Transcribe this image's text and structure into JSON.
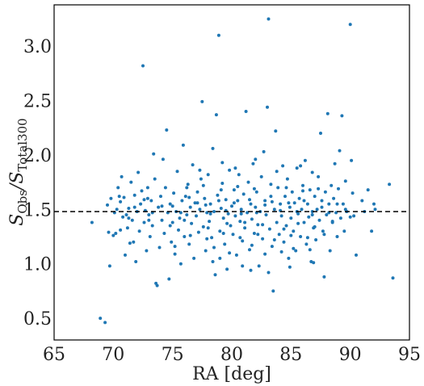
{
  "chart_data": {
    "type": "scatter",
    "xlabel": "RA [deg]",
    "ylabel_main": "S",
    "ylabel_sub1": "Obs",
    "ylabel_sep": "/S",
    "ylabel_sub2": "Total300",
    "xlim": [
      65,
      95
    ],
    "ylim": [
      0.3,
      3.38
    ],
    "xticks": [
      65,
      70,
      75,
      80,
      85,
      90,
      95
    ],
    "xtick_labels": [
      "65",
      "70",
      "75",
      "80",
      "85",
      "90",
      "95"
    ],
    "yticks": [
      0.5,
      1.0,
      1.5,
      2.0,
      2.5,
      3.0
    ],
    "ytick_labels": [
      "0.5",
      "1.0",
      "1.5",
      "2.0",
      "2.5",
      "3.0"
    ],
    "reference_line": {
      "y": 1.48,
      "style": "dashed",
      "color": "#000000"
    },
    "marker_color": "#1f77b4",
    "grid": false,
    "points": [
      [
        68.2,
        1.38
      ],
      [
        68.9,
        0.5
      ],
      [
        69.3,
        0.46
      ],
      [
        69.5,
        1.54
      ],
      [
        69.6,
        1.29
      ],
      [
        69.7,
        0.98
      ],
      [
        69.8,
        1.6
      ],
      [
        70.0,
        1.26
      ],
      [
        70.1,
        1.47
      ],
      [
        70.2,
        1.28
      ],
      [
        70.3,
        1.5
      ],
      [
        70.4,
        1.7
      ],
      [
        70.5,
        1.62
      ],
      [
        70.6,
        1.31
      ],
      [
        70.7,
        1.8
      ],
      [
        70.8,
        1.43
      ],
      [
        70.9,
        1.61
      ],
      [
        71.0,
        1.08
      ],
      [
        71.1,
        1.45
      ],
      [
        71.2,
        1.33
      ],
      [
        71.3,
        1.51
      ],
      [
        71.4,
        1.19
      ],
      [
        71.5,
        1.75
      ],
      [
        71.6,
        1.4
      ],
      [
        71.7,
        1.2
      ],
      [
        71.8,
        1.63
      ],
      [
        71.9,
        1.02
      ],
      [
        72.0,
        1.48
      ],
      [
        72.1,
        1.84
      ],
      [
        72.2,
        1.3
      ],
      [
        72.3,
        1.55
      ],
      [
        72.4,
        1.67
      ],
      [
        72.5,
        2.82
      ],
      [
        72.6,
        1.38
      ],
      [
        72.7,
        1.49
      ],
      [
        72.8,
        1.12
      ],
      [
        72.9,
        1.7
      ],
      [
        73.0,
        1.45
      ],
      [
        73.1,
        1.25
      ],
      [
        73.2,
        1.58
      ],
      [
        73.3,
        1.35
      ],
      [
        73.4,
        2.01
      ],
      [
        73.5,
        1.78
      ],
      [
        73.6,
        0.82
      ],
      [
        73.7,
        0.8
      ],
      [
        73.8,
        1.52
      ],
      [
        73.9,
        1.15
      ],
      [
        74.0,
        1.62
      ],
      [
        74.1,
        1.4
      ],
      [
        74.2,
        1.96
      ],
      [
        74.3,
        1.28
      ],
      [
        74.4,
        1.7
      ],
      [
        74.5,
        2.23
      ],
      [
        74.6,
        1.47
      ],
      [
        74.7,
        0.86
      ],
      [
        74.8,
        1.55
      ],
      [
        74.9,
        1.2
      ],
      [
        75.0,
        1.38
      ],
      [
        75.1,
        1.65
      ],
      [
        75.2,
        1.09
      ],
      [
        75.3,
        1.48
      ],
      [
        75.4,
        1.85
      ],
      [
        75.5,
        1.31
      ],
      [
        75.6,
        1.42
      ],
      [
        75.7,
        1.0
      ],
      [
        75.8,
        1.58
      ],
      [
        75.9,
        2.09
      ],
      [
        76.0,
        1.25
      ],
      [
        76.1,
        1.62
      ],
      [
        76.2,
        1.45
      ],
      [
        76.3,
        1.73
      ],
      [
        76.4,
        1.18
      ],
      [
        76.5,
        1.52
      ],
      [
        76.6,
        1.37
      ],
      [
        76.7,
        1.91
      ],
      [
        76.8,
        1.05
      ],
      [
        76.9,
        1.56
      ],
      [
        77.0,
        1.44
      ],
      [
        77.1,
        1.66
      ],
      [
        77.2,
        1.29
      ],
      [
        77.3,
        1.5
      ],
      [
        77.4,
        1.78
      ],
      [
        77.5,
        2.49
      ],
      [
        77.6,
        1.34
      ],
      [
        77.7,
        1.6
      ],
      [
        77.8,
        1.12
      ],
      [
        77.9,
        1.47
      ],
      [
        78.0,
        1.82
      ],
      [
        78.1,
        1.39
      ],
      [
        78.2,
        1.55
      ],
      [
        78.3,
        1.24
      ],
      [
        78.4,
        2.06
      ],
      [
        78.5,
        1.48
      ],
      [
        78.6,
        0.9
      ],
      [
        78.7,
        2.37
      ],
      [
        78.8,
        1.63
      ],
      [
        78.9,
        3.1
      ],
      [
        79.0,
        1.3
      ],
      [
        79.1,
        1.51
      ],
      [
        79.2,
        1.74
      ],
      [
        79.3,
        1.42
      ],
      [
        79.4,
        1.18
      ],
      [
        79.5,
        1.59
      ],
      [
        79.6,
        0.95
      ],
      [
        79.7,
        1.46
      ],
      [
        79.8,
        1.86
      ],
      [
        79.9,
        1.35
      ],
      [
        80.0,
        1.53
      ],
      [
        80.1,
        1.27
      ],
      [
        80.2,
        1.68
      ],
      [
        80.3,
        1.44
      ],
      [
        80.4,
        1.08
      ],
      [
        80.5,
        1.58
      ],
      [
        80.6,
        1.82
      ],
      [
        80.7,
        1.39
      ],
      [
        80.8,
        1.5
      ],
      [
        80.9,
        1.21
      ],
      [
        81.0,
        1.64
      ],
      [
        81.1,
        1.33
      ],
      [
        81.2,
        2.4
      ],
      [
        81.3,
        1.47
      ],
      [
        81.4,
        1.75
      ],
      [
        81.5,
        1.13
      ],
      [
        81.6,
        1.55
      ],
      [
        81.7,
        1.41
      ],
      [
        81.8,
        1.92
      ],
      [
        81.9,
        1.28
      ],
      [
        82.0,
        1.52
      ],
      [
        82.1,
        1.66
      ],
      [
        82.2,
        1.36
      ],
      [
        82.3,
        0.98
      ],
      [
        82.4,
        1.48
      ],
      [
        82.5,
        1.8
      ],
      [
        82.6,
        1.23
      ],
      [
        82.7,
        2.03
      ],
      [
        82.8,
        1.58
      ],
      [
        82.9,
        1.45
      ],
      [
        83.0,
        2.44
      ],
      [
        83.1,
        3.25
      ],
      [
        83.2,
        1.32
      ],
      [
        83.3,
        1.62
      ],
      [
        83.4,
        1.16
      ],
      [
        83.5,
        0.75
      ],
      [
        83.6,
        1.5
      ],
      [
        83.7,
        2.22
      ],
      [
        83.8,
        1.38
      ],
      [
        83.9,
        1.7
      ],
      [
        84.0,
        1.27
      ],
      [
        84.1,
        1.55
      ],
      [
        84.2,
        1.44
      ],
      [
        84.3,
        1.9
      ],
      [
        84.4,
        1.2
      ],
      [
        84.5,
        1.62
      ],
      [
        84.6,
        1.35
      ],
      [
        84.7,
        1.78
      ],
      [
        84.8,
        1.05
      ],
      [
        84.9,
        1.52
      ],
      [
        85.0,
        1.42
      ],
      [
        85.1,
        1.66
      ],
      [
        85.2,
        1.3
      ],
      [
        85.3,
        1.56
      ],
      [
        85.4,
        1.12
      ],
      [
        85.5,
        1.88
      ],
      [
        85.6,
        1.46
      ],
      [
        85.7,
        1.6
      ],
      [
        85.8,
        1.25
      ],
      [
        85.9,
        1.5
      ],
      [
        86.0,
        1.72
      ],
      [
        86.1,
        1.38
      ],
      [
        86.2,
        1.95
      ],
      [
        86.3,
        1.18
      ],
      [
        86.4,
        1.55
      ],
      [
        86.5,
        1.43
      ],
      [
        86.6,
        1.68
      ],
      [
        86.7,
        1.02
      ],
      [
        86.8,
        1.48
      ],
      [
        86.9,
        1.33
      ],
      [
        87.0,
        1.62
      ],
      [
        87.1,
        1.22
      ],
      [
        87.2,
        1.5
      ],
      [
        87.3,
        1.8
      ],
      [
        87.4,
        1.4
      ],
      [
        87.5,
        2.2
      ],
      [
        87.6,
        1.58
      ],
      [
        87.7,
        1.3
      ],
      [
        87.8,
        0.88
      ],
      [
        87.9,
        1.66
      ],
      [
        88.0,
        1.45
      ],
      [
        88.1,
        2.38
      ],
      [
        88.2,
        1.55
      ],
      [
        88.3,
        1.12
      ],
      [
        88.4,
        1.72
      ],
      [
        88.5,
        1.38
      ],
      [
        88.6,
        1.6
      ],
      [
        88.7,
        1.92
      ],
      [
        88.8,
        1.47
      ],
      [
        88.9,
        1.25
      ],
      [
        89.0,
        1.69
      ],
      [
        89.1,
        2.04
      ],
      [
        89.2,
        1.42
      ],
      [
        89.3,
        2.36
      ],
      [
        89.4,
        1.55
      ],
      [
        89.5,
        1.3
      ],
      [
        89.6,
        1.76
      ],
      [
        89.7,
        1.48
      ],
      [
        90.0,
        3.2
      ],
      [
        90.1,
        1.95
      ],
      [
        90.2,
        1.65
      ],
      [
        90.3,
        1.44
      ],
      [
        90.5,
        1.08
      ],
      [
        91.0,
        1.58
      ],
      [
        91.5,
        1.68
      ],
      [
        91.8,
        1.3
      ],
      [
        92.0,
        1.55
      ],
      [
        92.1,
        1.5
      ],
      [
        93.3,
        1.73
      ],
      [
        93.6,
        0.87
      ],
      [
        70.6,
        1.57
      ],
      [
        71.3,
        1.42
      ],
      [
        72.6,
        1.59
      ],
      [
        73.3,
        1.47
      ],
      [
        74.1,
        1.53
      ],
      [
        75.0,
        1.53
      ],
      [
        75.7,
        1.47
      ],
      [
        76.4,
        1.61
      ],
      [
        77.1,
        1.56
      ],
      [
        77.8,
        1.54
      ],
      [
        78.2,
        1.46
      ],
      [
        78.9,
        1.58
      ],
      [
        79.5,
        1.49
      ],
      [
        80.2,
        1.56
      ],
      [
        80.8,
        1.46
      ],
      [
        81.5,
        1.59
      ],
      [
        82.1,
        1.47
      ],
      [
        82.8,
        1.54
      ],
      [
        83.4,
        1.57
      ],
      [
        84.1,
        1.49
      ],
      [
        84.8,
        1.56
      ],
      [
        85.5,
        1.48
      ],
      [
        86.1,
        1.58
      ],
      [
        86.8,
        1.45
      ],
      [
        87.6,
        1.52
      ],
      [
        88.2,
        1.47
      ],
      [
        88.9,
        1.55
      ],
      [
        89.6,
        1.5
      ],
      [
        76.2,
        1.7
      ],
      [
        77.6,
        1.72
      ],
      [
        79.1,
        1.68
      ],
      [
        80.5,
        1.71
      ],
      [
        81.9,
        1.69
      ],
      [
        83.3,
        1.73
      ],
      [
        84.6,
        1.7
      ],
      [
        86.0,
        1.67
      ],
      [
        87.3,
        1.69
      ],
      [
        76.5,
        1.26
      ],
      [
        77.9,
        1.23
      ],
      [
        79.3,
        1.28
      ],
      [
        80.7,
        1.24
      ],
      [
        82.2,
        1.27
      ],
      [
        83.6,
        1.22
      ],
      [
        85.0,
        1.26
      ],
      [
        86.4,
        1.24
      ],
      [
        87.8,
        1.27
      ],
      [
        75.2,
        1.16
      ],
      [
        78.5,
        1.15
      ],
      [
        81.7,
        1.17
      ],
      [
        85.2,
        1.14
      ],
      [
        79.8,
        1.1
      ],
      [
        82.8,
        1.09
      ],
      [
        84.2,
        1.11
      ],
      [
        86.6,
        1.13
      ],
      [
        77.3,
        1.86
      ],
      [
        80.3,
        1.88
      ],
      [
        83.8,
        1.85
      ],
      [
        86.8,
        1.84
      ],
      [
        79.2,
        1.93
      ],
      [
        82.0,
        1.96
      ],
      [
        85.8,
        1.9
      ],
      [
        73.0,
        1.4
      ],
      [
        74.8,
        1.35
      ],
      [
        76.0,
        1.4
      ],
      [
        78.0,
        1.33
      ],
      [
        79.6,
        1.37
      ],
      [
        81.1,
        1.38
      ],
      [
        82.6,
        1.36
      ],
      [
        84.4,
        1.32
      ],
      [
        85.6,
        1.37
      ],
      [
        87.0,
        1.34
      ],
      [
        88.5,
        1.39
      ],
      [
        90.0,
        1.43
      ],
      [
        71.8,
        1.52
      ],
      [
        72.9,
        1.6
      ],
      [
        91.2,
        1.48
      ],
      [
        78.4,
        1.02
      ],
      [
        80.9,
        0.98
      ],
      [
        83.1,
        0.92
      ],
      [
        84.9,
        0.97
      ],
      [
        86.9,
        1.01
      ],
      [
        81.6,
        0.94
      ],
      [
        79.0,
        1.05
      ]
    ]
  }
}
